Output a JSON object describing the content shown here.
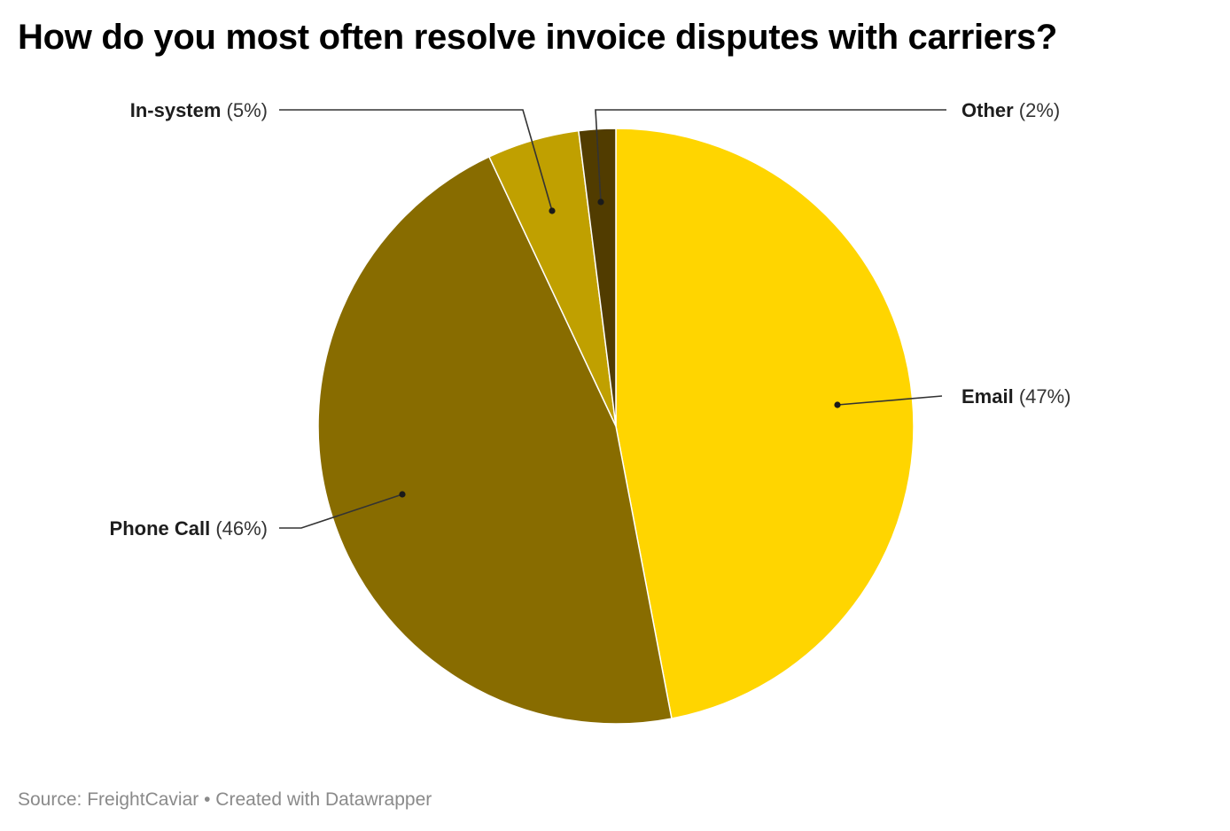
{
  "chart_data": {
    "type": "pie",
    "title": "How do you most often resolve invoice disputes with carriers?",
    "slices": [
      {
        "label": "Email",
        "value": 47,
        "value_label": "(47%)",
        "color": "#FFD500"
      },
      {
        "label": "Phone Call",
        "value": 46,
        "value_label": "(46%)",
        "color": "#886C00"
      },
      {
        "label": "In-system",
        "value": 5,
        "value_label": "(5%)",
        "color": "#C0A000"
      },
      {
        "label": "Other",
        "value": 2,
        "value_label": "(2%)",
        "color": "#513C00"
      }
    ],
    "legend": "none",
    "labels": "outside with leader lines"
  },
  "footer": {
    "source": "Source: FreightCaviar",
    "separator": "•",
    "credit": "Created with Datawrapper"
  }
}
